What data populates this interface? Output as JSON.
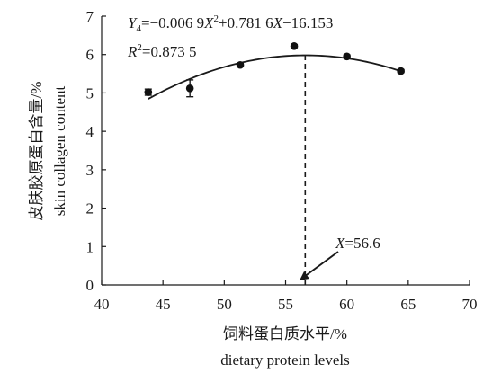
{
  "chart_data": {
    "type": "scatter",
    "xlabel_zh": "饲料蛋白质水平/%",
    "xlabel_en": "dietary protein levels",
    "ylabel_zh": "皮肤胶原蛋白含量/%",
    "ylabel_en": "skin collagen content",
    "xlim": [
      40,
      70
    ],
    "ylim": [
      0,
      7
    ],
    "x_ticks": [
      40,
      45,
      50,
      55,
      60,
      65,
      70
    ],
    "y_ticks": [
      0,
      1,
      2,
      3,
      4,
      5,
      6,
      7
    ],
    "grid": false,
    "points": [
      {
        "x": 43.8,
        "y": 5.02,
        "err": 0.08
      },
      {
        "x": 47.2,
        "y": 5.12,
        "err": 0.22
      },
      {
        "x": 51.3,
        "y": 5.73,
        "err": 0.04
      },
      {
        "x": 55.7,
        "y": 6.22,
        "err": 0.04
      },
      {
        "x": 60.0,
        "y": 5.95,
        "err": 0.04
      },
      {
        "x": 64.4,
        "y": 5.57,
        "err": 0.04
      }
    ],
    "fit_curve": {
      "a": -0.0069,
      "b": 0.7816,
      "c": -16.153,
      "x_range": [
        43.8,
        64.4
      ]
    },
    "equation": {
      "y_var": "Y",
      "y_sub": "4",
      "eq": "=−0.006 9",
      "x_var": "X",
      "sup": "2",
      "mid": "+0.781 6",
      "tail": "−16.153"
    },
    "r2": {
      "r": "R",
      "sup": "2",
      "val": "=0.873 5"
    },
    "optimum": {
      "x": 56.6,
      "x_var": "X",
      "label": "=56.6"
    }
  }
}
